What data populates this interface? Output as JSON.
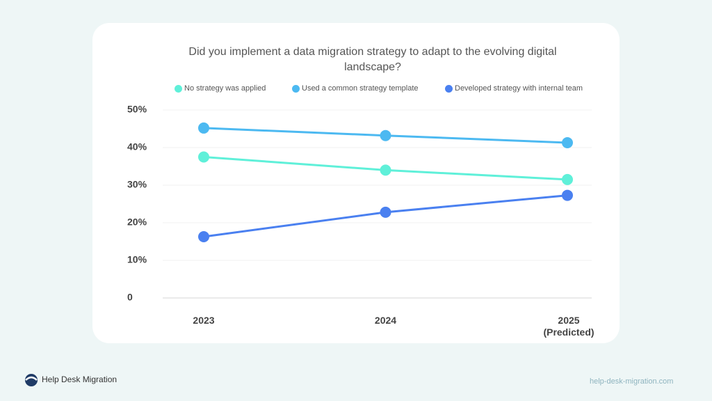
{
  "chart_data": {
    "type": "line",
    "title": "Did you implement a data migration strategy to adapt to the evolving digital landscape?",
    "categories": [
      "2023",
      "2024",
      "2025 (Predicted)"
    ],
    "series": [
      {
        "name": "No strategy was applied",
        "color": "#5ff0d9",
        "values": [
          37.5,
          34,
          31.5
        ]
      },
      {
        "name": "Used a common strategy template",
        "color": "#4cb9f1",
        "values": [
          45.2,
          43.2,
          41.3
        ]
      },
      {
        "name": "Developed strategy with internal team",
        "color": "#4a80f0",
        "values": [
          16.3,
          22.8,
          27.3
        ]
      }
    ],
    "ylim": [
      0,
      50
    ],
    "yticks": [
      0,
      {
        "value": 10,
        "label": "10%"
      },
      {
        "value": 20,
        "label": "20%"
      },
      {
        "value": 30,
        "label": "30%"
      },
      {
        "value": 40,
        "label": "40%"
      },
      {
        "value": 50,
        "label": "50%"
      }
    ],
    "grid": true
  },
  "footer": {
    "brand": "Help Desk Migration",
    "url": "help-desk-migration.com"
  }
}
